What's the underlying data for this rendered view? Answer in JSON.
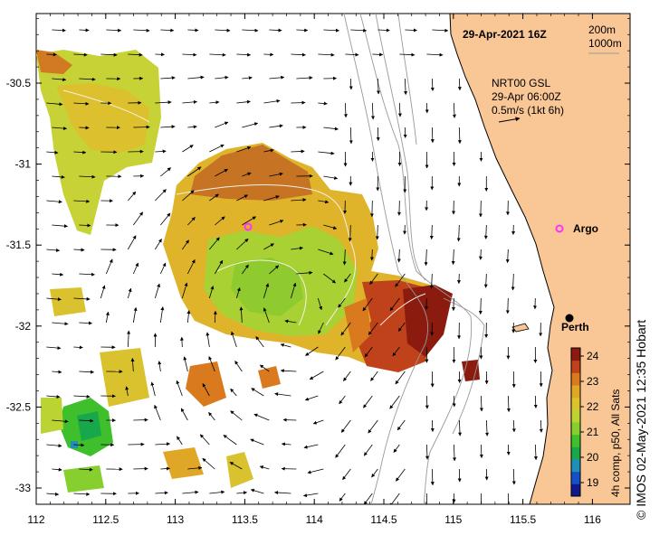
{
  "title": {
    "datetime": "29-Apr-2021 16Z"
  },
  "contour_key": [
    "200m",
    "1000m"
  ],
  "current_info": {
    "line1": "NRT00 GSL",
    "line2": "29-Apr 06:00Z",
    "line3": "0.5m/s (1kt 6h)"
  },
  "places": {
    "argo": "Argo",
    "perth": "Perth"
  },
  "colorbar": {
    "label": "4h comp, p50, All Sats",
    "ticks": [
      "24",
      "23",
      "22",
      "21",
      "20",
      "19"
    ],
    "colors": [
      "#8b1a0f",
      "#c0421a",
      "#d97a1f",
      "#e0a625",
      "#dac22e",
      "#bcd433",
      "#86cf2e",
      "#3fbf2c",
      "#18a84b",
      "#1f8fb6",
      "#1450c8",
      "#101a8c"
    ]
  },
  "credit": "©  IMOS 02-May-2021 12:35 Hobart",
  "axes": {
    "x_ticks": [
      "112",
      "112.5",
      "113",
      "113.5",
      "114",
      "114.5",
      "115",
      "115.5",
      "116"
    ],
    "y_ticks": [
      "-30.5",
      "-31",
      "-31.5",
      "-32",
      "-32.5",
      "-33"
    ]
  },
  "colors": {
    "land": "#f9c696",
    "sst_warm": "#c0421a",
    "sst_mid": "#e0a625",
    "sst_cool": "#86cf2e",
    "argo_marker": "#ff33ff"
  }
}
